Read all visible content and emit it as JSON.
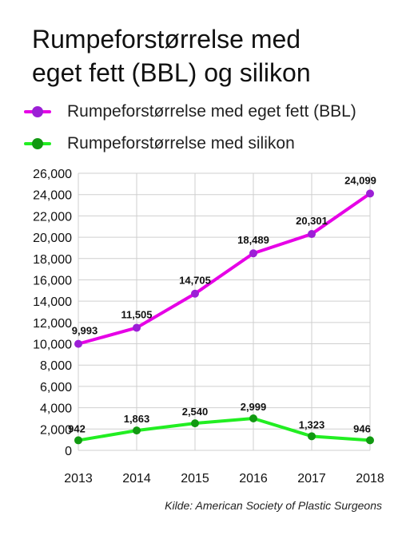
{
  "title_lines": [
    "Rumpeforstørrelse med",
    "eget fett (BBL) og silikon"
  ],
  "legend": [
    {
      "label": "Rumpeforstørrelse med eget fett (BBL)",
      "color": "#e600e6",
      "marker_color": "#9c1fd6"
    },
    {
      "label": "Rumpeforstørrelse med silikon",
      "color": "#22ee22",
      "marker_color": "#119911"
    }
  ],
  "source": "Kilde: American Society of Plastic Surgeons",
  "chart_data": {
    "type": "line",
    "categories": [
      "2013",
      "2014",
      "2015",
      "2016",
      "2017",
      "2018"
    ],
    "series": [
      {
        "name": "Rumpeforstørrelse med eget fett (BBL)",
        "values": [
          9993,
          11505,
          14705,
          18489,
          20301,
          24099
        ],
        "labels": [
          "9,993",
          "11,505",
          "14,705",
          "18,489",
          "20,301",
          "24,099"
        ],
        "color": "#e600e6",
        "marker_color": "#9c1fd6"
      },
      {
        "name": "Rumpeforstørrelse med silikon",
        "values": [
          942,
          1863,
          2540,
          2999,
          1323,
          946
        ],
        "labels": [
          "942",
          "1,863",
          "2,540",
          "2,999",
          "1,323",
          "946"
        ],
        "color": "#22ee22",
        "marker_color": "#119911"
      }
    ],
    "ylim": [
      0,
      26000
    ],
    "yticks": [
      0,
      2000,
      4000,
      6000,
      8000,
      10000,
      12000,
      14000,
      16000,
      18000,
      20000,
      22000,
      24000,
      26000
    ],
    "ytick_labels": [
      "0",
      "2,000",
      "4,000",
      "6,000",
      "8,000",
      "10,000",
      "12,000",
      "14,000",
      "16,000",
      "18,000",
      "20,000",
      "22,000",
      "24,000",
      "26,000"
    ],
    "grid": true,
    "legend_position": "top"
  }
}
